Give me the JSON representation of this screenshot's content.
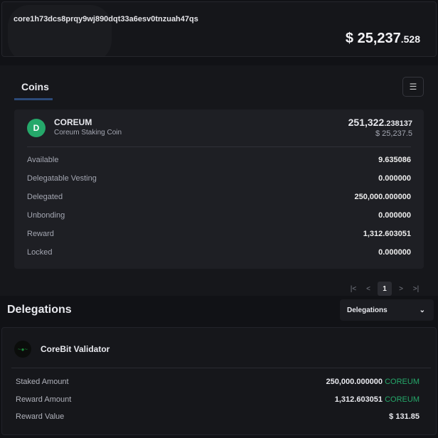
{
  "account": {
    "address": "core1h73dcs8prqy9wj890dqt33a6esv0tnzuah47qs",
    "total_int": "$ 25,237",
    "total_dec": ".528"
  },
  "coins_tab": {
    "label": "Coins",
    "filter_icon": "filter-icon"
  },
  "coin": {
    "symbol": "COREUM",
    "name": "Coreum Staking Coin",
    "amount_int": "251,322",
    "amount_dec": ".238137",
    "usd": "$ 25,237.5",
    "color": "#25a86a",
    "rows": [
      {
        "label": "Available",
        "value": "9.635086"
      },
      {
        "label": "Delegatable Vesting",
        "value": "0.000000"
      },
      {
        "label": "Delegated",
        "value": "250,000.000000"
      },
      {
        "label": "Unbonding",
        "value": "0.000000"
      },
      {
        "label": "Reward",
        "value": "1,312.603051"
      },
      {
        "label": "Locked",
        "value": "0.000000"
      }
    ]
  },
  "pagination": {
    "first": "|<",
    "prev": "<",
    "page": "1",
    "next": ">",
    "last": ">|"
  },
  "delegations": {
    "title": "Delegations",
    "dropdown": "Delegations",
    "validator": {
      "name": "CoreBit Validator",
      "rows": [
        {
          "label": "Staked Amount",
          "value": "250,000.000000",
          "unit": "COREUM"
        },
        {
          "label": "Reward Amount",
          "value": "1,312.603051",
          "unit": "COREUM"
        },
        {
          "label": "Reward Value",
          "value": "$ 131.85",
          "unit": ""
        }
      ]
    }
  }
}
